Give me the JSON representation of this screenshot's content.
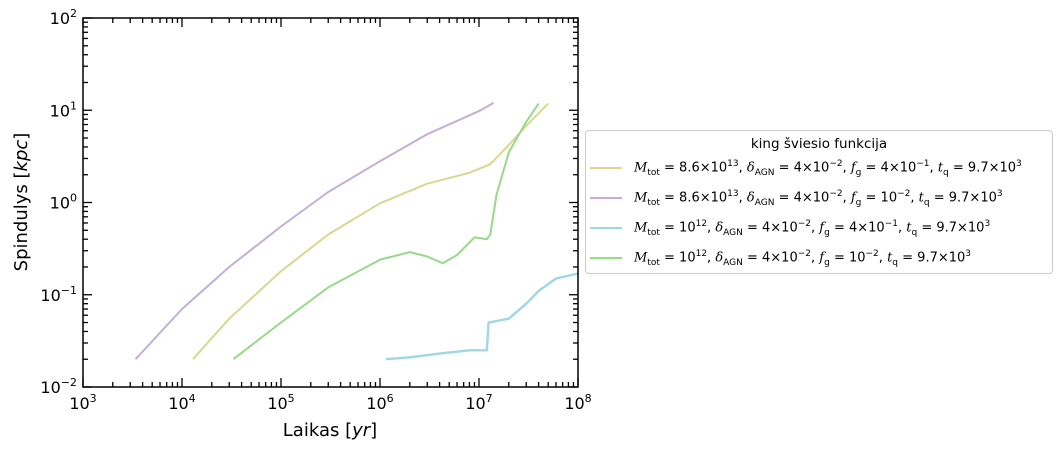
{
  "chart_data": {
    "type": "line",
    "xlabel": "Laikas [yr]",
    "ylabel": "Spindulys [kpc]",
    "xscale": "log",
    "yscale": "log",
    "xlim": [
      1000,
      100000000
    ],
    "ylim": [
      0.01,
      100
    ],
    "x_ticks": [
      {
        "base": "10",
        "exp": "3"
      },
      {
        "base": "10",
        "exp": "4"
      },
      {
        "base": "10",
        "exp": "5"
      },
      {
        "base": "10",
        "exp": "6"
      },
      {
        "base": "10",
        "exp": "7"
      },
      {
        "base": "10",
        "exp": "8"
      }
    ],
    "y_ticks": [
      {
        "base": "10",
        "exp": "−2"
      },
      {
        "base": "10",
        "exp": "−1"
      },
      {
        "base": "10",
        "exp": "0"
      },
      {
        "base": "10",
        "exp": "1"
      },
      {
        "base": "10",
        "exp": "2"
      }
    ],
    "grid": false,
    "legend": {
      "title": "king šviesio funkcija",
      "placement": "outside-right"
    },
    "series": [
      {
        "name": "M_tot = 8.6×10^13, δ_AGN = 4×10^−2, f_g = 4×10^−1, t_q = 9.7×10^3",
        "color": "#d6d98f",
        "x": [
          12900,
          30000,
          100000,
          300000,
          1000000,
          3000000,
          8000000,
          13000000,
          20000000,
          30000000,
          50000000
        ],
        "y": [
          0.02,
          0.055,
          0.18,
          0.45,
          0.98,
          1.6,
          2.1,
          2.6,
          4.2,
          6.8,
          11.8
        ]
      },
      {
        "name": "M_tot = 8.6×10^13, δ_AGN = 4×10^−2, f_g = 10^−2, t_q = 9.7×10^3",
        "color": "#c4aed6",
        "x": [
          3400,
          10000,
          30000,
          100000,
          300000,
          1000000,
          3000000,
          10000000,
          14000000
        ],
        "y": [
          0.02,
          0.07,
          0.2,
          0.55,
          1.3,
          2.8,
          5.5,
          9.8,
          12
        ]
      },
      {
        "name": "M_tot = 10^12, δ_AGN = 4×10^−2, f_g = 4×10^−1, t_q = 9.7×10^3",
        "color": "#9dd8e3",
        "x": [
          1150000,
          2000000,
          4000000,
          8000000,
          12000000,
          12500000,
          20000000,
          30000000,
          40000000,
          60000000,
          100000000
        ],
        "y": [
          0.02,
          0.021,
          0.023,
          0.025,
          0.025,
          0.05,
          0.055,
          0.08,
          0.11,
          0.15,
          0.17
        ]
      },
      {
        "name": "M_tot = 10^12, δ_AGN = 4×10^−2, f_g = 10^−2, t_q = 9.7×10^3",
        "color": "#98d98a",
        "x": [
          33000,
          100000,
          300000,
          1000000,
          2000000,
          3000000,
          4300000,
          6000000,
          9000000,
          12000000,
          13000000,
          15000000,
          20000000,
          30000000,
          40000000
        ],
        "y": [
          0.02,
          0.05,
          0.12,
          0.24,
          0.29,
          0.26,
          0.22,
          0.27,
          0.42,
          0.4,
          0.45,
          1.2,
          3.5,
          7.5,
          11.8
        ]
      }
    ]
  },
  "legend_entries": [
    {
      "m": "8.6×10",
      "m_exp": "13",
      "d": "4×10",
      "d_exp": "−2",
      "fg": "4×10",
      "fg_exp": "−1",
      "tq": "9.7×10",
      "tq_exp": "3"
    },
    {
      "m": "8.6×10",
      "m_exp": "13",
      "d": "4×10",
      "d_exp": "−2",
      "fg": "10",
      "fg_exp": "−2",
      "tq": "9.7×10",
      "tq_exp": "3"
    },
    {
      "m": "10",
      "m_exp": "12",
      "d": "4×10",
      "d_exp": "−2",
      "fg": "4×10",
      "fg_exp": "−1",
      "tq": "9.7×10",
      "tq_exp": "3"
    },
    {
      "m": "10",
      "m_exp": "12",
      "d": "4×10",
      "d_exp": "−2",
      "fg": "10",
      "fg_exp": "−2",
      "tq": "9.7×10",
      "tq_exp": "3"
    }
  ],
  "labels": {
    "xlabel_main": "Laikas [",
    "xlabel_unit": "yr",
    "xlabel_end": "]",
    "ylabel_main": "Spindulys [",
    "ylabel_unit": "kpc",
    "ylabel_end": "]",
    "m_sym": "M",
    "m_sub": "tot",
    "d_sym": "δ",
    "d_sub": "AGN",
    "fg_sym": "f",
    "fg_sub": "g",
    "tq_sym": "t",
    "tq_sub": "q",
    "eq": " = ",
    "sep": ", "
  }
}
